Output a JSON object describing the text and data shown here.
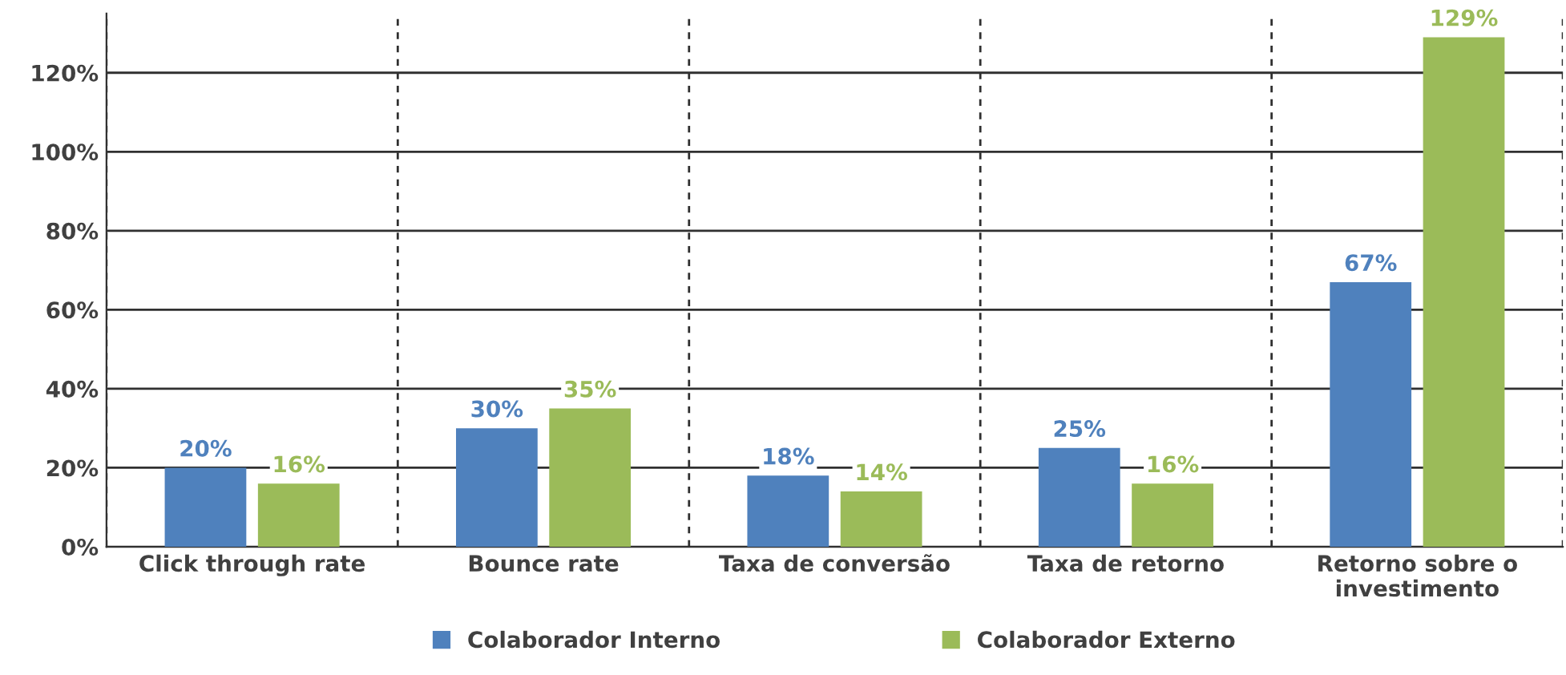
{
  "chart_data": {
    "type": "bar",
    "categories": [
      "Click through rate",
      "Bounce rate",
      "Taxa de conversão",
      "Taxa de retorno",
      "Retorno sobre o investimento"
    ],
    "series": [
      {
        "name": "Colaborador Interno",
        "color": "#4f81bd",
        "values": [
          20,
          30,
          18,
          25,
          67
        ],
        "value_labels": [
          "20%",
          "30%",
          "18%",
          "25%",
          "67%"
        ]
      },
      {
        "name": "Colaborador Externo",
        "color": "#9bbb59",
        "values": [
          16,
          35,
          14,
          16,
          129
        ],
        "value_labels": [
          "16%",
          "35%",
          "14%",
          "16%",
          "129%"
        ]
      }
    ],
    "ylim": [
      0,
      135
    ],
    "yticks": [
      {
        "value": 0,
        "label": "0%"
      },
      {
        "value": 20,
        "label": "20%"
      },
      {
        "value": 40,
        "label": "40%"
      },
      {
        "value": 60,
        "label": "60%"
      },
      {
        "value": 80,
        "label": "80%"
      },
      {
        "value": 100,
        "label": "100%"
      },
      {
        "value": 120,
        "label": "120%"
      }
    ],
    "grid": true,
    "legend": "bottom"
  }
}
